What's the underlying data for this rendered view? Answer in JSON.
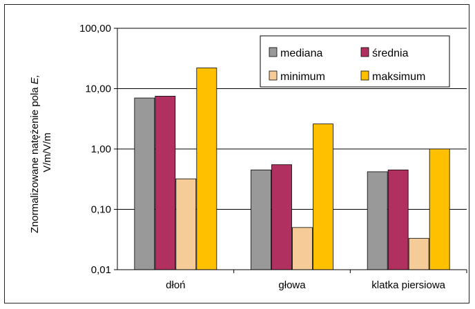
{
  "chart_data": {
    "type": "bar",
    "yscale": "log",
    "ylim": [
      0.01,
      100
    ],
    "y_ticks": [
      "100,00",
      "10,00",
      "1,00",
      "0,10",
      "0,01"
    ],
    "ylabel_line1": "Znormalizowane natężenie pola ",
    "ylabel_var": "E,",
    "ylabel_line2": "V/m/V/m",
    "categories": [
      "dłoń",
      "głowa",
      "klatka piersiowa"
    ],
    "series": [
      {
        "name": "mediana",
        "color": "#999999",
        "values": [
          7.0,
          0.45,
          0.42
        ]
      },
      {
        "name": "średnia",
        "color": "#b03060",
        "values": [
          7.5,
          0.55,
          0.45
        ]
      },
      {
        "name": "minimum",
        "color": "#f5cc98",
        "values": [
          0.32,
          0.05,
          0.033
        ]
      },
      {
        "name": "maksimum",
        "color": "#ffc000",
        "values": [
          22.0,
          2.6,
          1.0
        ]
      }
    ],
    "grid": "horizontal",
    "legend_position": "top-right"
  }
}
